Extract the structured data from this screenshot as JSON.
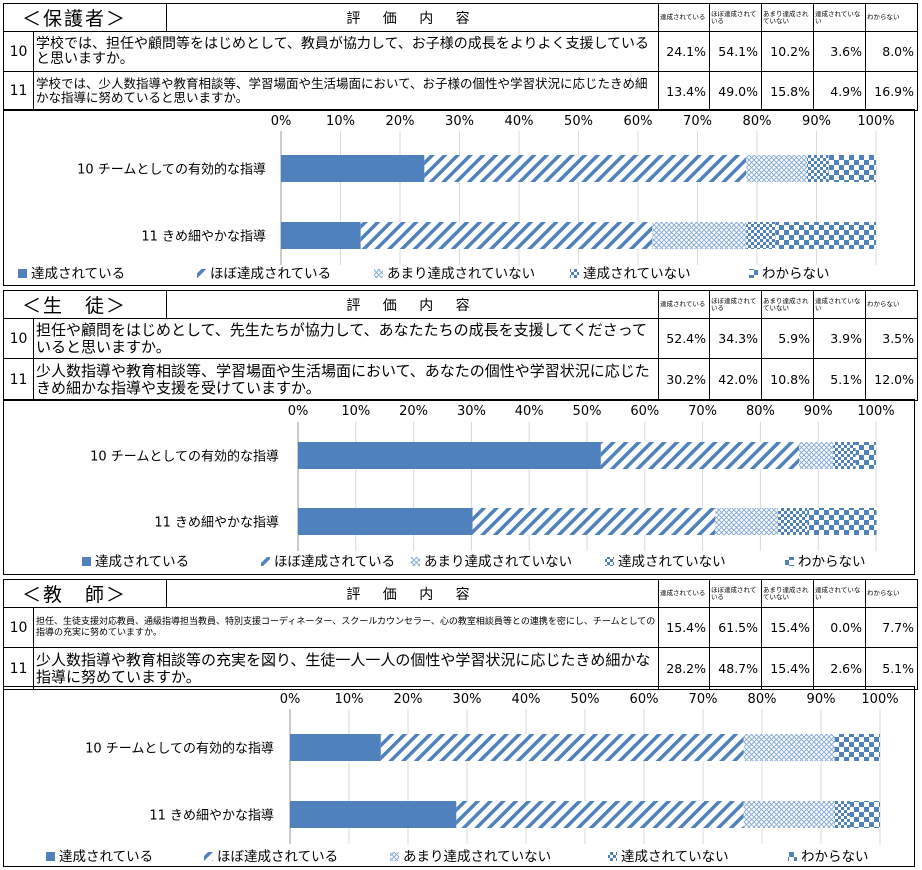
{
  "header_labels": {
    "content": "評 価 内 容",
    "columns": [
      "達成されている",
      "ほぼ達成されている",
      "あまり達成されていない",
      "達成されていない",
      "わからない"
    ]
  },
  "sections": [
    {
      "group": "＜保護者＞",
      "questions": [
        {
          "no": "10",
          "text": "学校では、担任や顧問等をはじめとして、教員が協力して、お子様の成長をよりよく支援していると思いますか。",
          "values": [
            "24.1%",
            "54.1%",
            "10.2%",
            "3.6%",
            "8.0%"
          ]
        },
        {
          "no": "11",
          "text": "学校では、少人数指導や教育相談等、学習場面や生活場面において、お子様の個性や学習状況に応じたきめ細かな指導に努めていると思いますか。",
          "values": [
            "13.4%",
            "49.0%",
            "15.8%",
            "4.9%",
            "16.9%"
          ]
        }
      ]
    },
    {
      "group": "＜生　徒＞",
      "questions": [
        {
          "no": "10",
          "text": "担任や顧問をはじめとして、先生たちが協力して、あなたたちの成長を支援してくださっていると思いますか。",
          "values": [
            "52.4%",
            "34.3%",
            "5.9%",
            "3.9%",
            "3.5%"
          ]
        },
        {
          "no": "11",
          "text": "少人数指導や教育相談等、学習場面や生活場面において、あなたの個性や学習状況に応じたきめ細かな指導や支援を受けていますか。",
          "values": [
            "30.2%",
            "42.0%",
            "10.8%",
            "5.1%",
            "12.0%"
          ]
        }
      ]
    },
    {
      "group": "＜教　師＞",
      "questions": [
        {
          "no": "10",
          "text": "担任、生徒支援対応教員、通級指導担当教員、特別支援コーディネーター、スクールカウンセラー、心の教室相談員等との連携を密にし、チームとしての指導の充実に努めていますか。",
          "values": [
            "15.4%",
            "61.5%",
            "15.4%",
            "0.0%",
            "7.7%"
          ]
        },
        {
          "no": "11",
          "text": "少人数指導や教育相談等の充実を図り、生徒一人一人の個性や学習状況に応じたきめ細かな指導に努めていますか。",
          "values": [
            "28.2%",
            "48.7%",
            "15.4%",
            "2.6%",
            "5.1%"
          ]
        }
      ]
    }
  ],
  "chart_data": [
    {
      "type": "bar",
      "orientation": "horizontal",
      "stacked": "percent",
      "categories": [
        "10 チームとしての有効的な指導",
        "11 きめ細やかな指導"
      ],
      "xticks": [
        "0%",
        "10%",
        "20%",
        "30%",
        "40%",
        "50%",
        "60%",
        "70%",
        "80%",
        "90%",
        "100%"
      ],
      "xlim": [
        0,
        100
      ],
      "legend_position": "bottom",
      "series": [
        {
          "name": "達成されている",
          "values": [
            24.1,
            13.4
          ],
          "color": "#4f81bd",
          "pattern": "solid"
        },
        {
          "name": "ほぼ達成されている",
          "values": [
            54.1,
            49.0
          ],
          "color": "#4f81bd",
          "pattern": "diagonal"
        },
        {
          "name": "あまり達成されていない",
          "values": [
            10.2,
            15.8
          ],
          "color": "#4f81bd",
          "pattern": "crosshatch"
        },
        {
          "name": "達成されていない",
          "values": [
            3.6,
            4.9
          ],
          "color": "#4f81bd",
          "pattern": "checker"
        },
        {
          "name": "わからない",
          "values": [
            8.0,
            16.9
          ],
          "color": "#4f81bd",
          "pattern": "check"
        }
      ]
    },
    {
      "type": "bar",
      "orientation": "horizontal",
      "stacked": "percent",
      "categories": [
        "10 チームとしての有効的な指導",
        "11 きめ細やかな指導"
      ],
      "xticks": [
        "0%",
        "10%",
        "20%",
        "30%",
        "40%",
        "50%",
        "60%",
        "70%",
        "80%",
        "90%",
        "100%"
      ],
      "xlim": [
        0,
        100
      ],
      "legend_position": "bottom",
      "series": [
        {
          "name": "達成されている",
          "values": [
            52.4,
            30.2
          ],
          "color": "#4f81bd",
          "pattern": "solid"
        },
        {
          "name": "ほぼ達成されている",
          "values": [
            34.3,
            42.0
          ],
          "color": "#4f81bd",
          "pattern": "diagonal"
        },
        {
          "name": "あまり達成されていない",
          "values": [
            5.9,
            10.8
          ],
          "color": "#4f81bd",
          "pattern": "crosshatch"
        },
        {
          "name": "達成されていない",
          "values": [
            3.9,
            5.1
          ],
          "color": "#4f81bd",
          "pattern": "checker"
        },
        {
          "name": "わからない",
          "values": [
            3.5,
            12.0
          ],
          "color": "#4f81bd",
          "pattern": "check"
        }
      ]
    },
    {
      "type": "bar",
      "orientation": "horizontal",
      "stacked": "percent",
      "categories": [
        "10 チームとしての有効的な指導",
        "11 きめ細やかな指導"
      ],
      "xticks": [
        "0%",
        "10%",
        "20%",
        "30%",
        "40%",
        "50%",
        "60%",
        "70%",
        "80%",
        "90%",
        "100%"
      ],
      "xlim": [
        0,
        100
      ],
      "legend_position": "bottom",
      "series": [
        {
          "name": "達成されている",
          "values": [
            15.4,
            28.2
          ],
          "color": "#4f81bd",
          "pattern": "solid"
        },
        {
          "name": "ほぼ達成されている",
          "values": [
            61.5,
            48.7
          ],
          "color": "#4f81bd",
          "pattern": "diagonal"
        },
        {
          "name": "あまり達成されていない",
          "values": [
            15.4,
            15.4
          ],
          "color": "#4f81bd",
          "pattern": "crosshatch"
        },
        {
          "name": "達成されていない",
          "values": [
            0.0,
            2.6
          ],
          "color": "#4f81bd",
          "pattern": "checker"
        },
        {
          "name": "わからない",
          "values": [
            7.7,
            5.1
          ],
          "color": "#4f81bd",
          "pattern": "check"
        }
      ]
    }
  ]
}
